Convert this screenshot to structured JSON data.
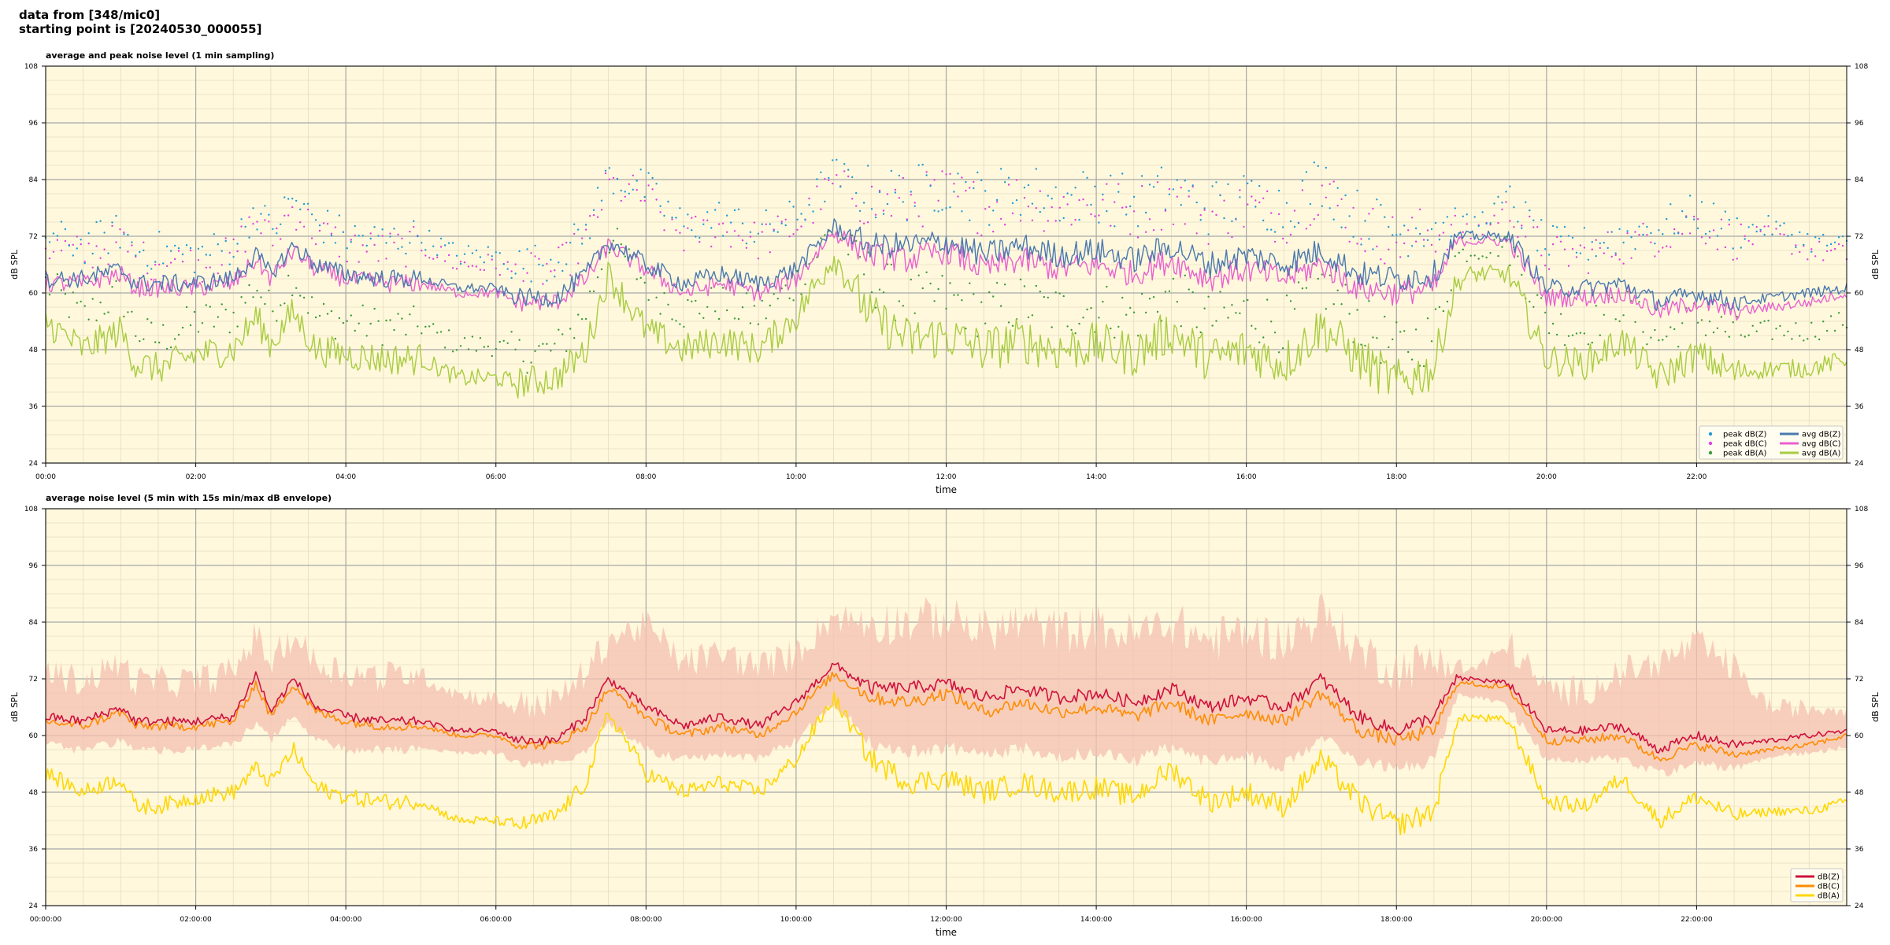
{
  "header": {
    "line1": "data from [348/mic0]",
    "line2": "starting point is [20240530_000055]"
  },
  "colors": {
    "plot_bg": "#fff8dc",
    "peak_z": "#1f9bd7",
    "peak_c": "#e040e0",
    "peak_a": "#3a9a3a",
    "avg_z": "#4a78b0",
    "avg_c": "#e860d0",
    "avg_a": "#a8cc40",
    "db_z": "#d0103c",
    "db_c": "#ff8c00",
    "db_a": "#ffd700",
    "envelope": "#f4c0b0"
  },
  "chart_data": [
    {
      "type": "line",
      "title": "average and peak noise level (1 min sampling)",
      "xlabel": "time",
      "ylabel": "dB SPL",
      "ylim": [
        24,
        108
      ],
      "xlim_hours": [
        0,
        24
      ],
      "yticks": [
        "24",
        "36",
        "48",
        "60",
        "72",
        "84",
        "96",
        "108"
      ],
      "xticks": [
        "00:00",
        "02:00",
        "04:00",
        "06:00",
        "08:00",
        "10:00",
        "12:00",
        "14:00",
        "16:00",
        "18:00",
        "20:00",
        "22:00"
      ],
      "grid": true,
      "legend_position": "bottom-right",
      "x": [
        0,
        0.5,
        1.0,
        1.2,
        1.5,
        2.0,
        2.5,
        2.8,
        3.0,
        3.3,
        3.6,
        4.0,
        4.5,
        5.0,
        5.5,
        6.0,
        6.3,
        6.8,
        7.2,
        7.5,
        8.0,
        8.5,
        9.0,
        9.5,
        10.0,
        10.5,
        11.0,
        11.5,
        12.0,
        12.5,
        13.0,
        13.5,
        14.0,
        14.5,
        15.0,
        15.5,
        16.0,
        16.5,
        17.0,
        17.5,
        18.0,
        18.5,
        18.8,
        19.0,
        19.5,
        20.0,
        20.5,
        21.0,
        21.5,
        22.0,
        22.5,
        23.0,
        23.5,
        24.0
      ],
      "series": [
        {
          "name": "avg dB(Z)",
          "style": "line",
          "values": [
            63,
            63,
            65,
            62,
            62,
            62,
            63,
            68,
            64,
            70,
            66,
            64,
            63,
            63,
            61,
            61,
            59,
            59,
            64,
            71,
            66,
            62,
            64,
            62,
            65,
            74,
            70,
            70,
            71,
            68,
            70,
            68,
            69,
            67,
            70,
            66,
            68,
            66,
            69,
            64,
            63,
            64,
            72,
            72,
            72,
            61,
            61,
            62,
            58,
            60,
            58,
            59,
            60,
            61
          ]
        },
        {
          "name": "avg dB(C)",
          "style": "line",
          "values": [
            62,
            62,
            64,
            61,
            61,
            61,
            62,
            67,
            63,
            69,
            65,
            63,
            62,
            62,
            60,
            60,
            58,
            58,
            63,
            70,
            65,
            60,
            62,
            60,
            63,
            73,
            68,
            67,
            69,
            65,
            67,
            65,
            66,
            64,
            67,
            63,
            65,
            63,
            66,
            61,
            60,
            61,
            71,
            71,
            71,
            59,
            59,
            60,
            56,
            58,
            56,
            57,
            58,
            60
          ]
        },
        {
          "name": "avg dB(A)",
          "style": "line",
          "values": [
            54,
            48,
            52,
            45,
            44,
            47,
            48,
            55,
            49,
            56,
            48,
            47,
            46,
            46,
            42,
            42,
            41,
            42,
            48,
            64,
            52,
            48,
            50,
            48,
            55,
            68,
            55,
            50,
            51,
            48,
            50,
            48,
            49,
            47,
            52,
            46,
            48,
            45,
            53,
            46,
            41,
            44,
            62,
            64,
            64,
            46,
            45,
            50,
            42,
            47,
            43,
            44,
            44,
            46
          ]
        },
        {
          "name": "peak dB(Z)",
          "style": "points",
          "values": [
            72,
            70,
            73,
            69,
            69,
            68,
            70,
            78,
            73,
            80,
            75,
            72,
            71,
            72,
            68,
            68,
            66,
            67,
            73,
            85,
            82,
            74,
            76,
            73,
            76,
            85,
            81,
            81,
            83,
            80,
            82,
            80,
            81,
            79,
            82,
            78,
            80,
            78,
            84,
            76,
            73,
            75,
            75,
            74,
            80,
            70,
            70,
            72,
            74,
            77,
            73,
            74,
            71,
            70
          ]
        },
        {
          "name": "peak dB(C)",
          "style": "points",
          "values": [
            70,
            68,
            71,
            67,
            67,
            66,
            68,
            76,
            71,
            78,
            73,
            70,
            69,
            70,
            66,
            66,
            64,
            65,
            71,
            83,
            80,
            72,
            74,
            71,
            74,
            83,
            79,
            79,
            81,
            78,
            80,
            78,
            79,
            77,
            80,
            76,
            78,
            76,
            82,
            74,
            71,
            73,
            73,
            72,
            78,
            68,
            68,
            70,
            72,
            75,
            71,
            72,
            69,
            68
          ]
        },
        {
          "name": "peak dB(A)",
          "style": "points",
          "values": [
            62,
            55,
            60,
            52,
            50,
            54,
            55,
            62,
            56,
            64,
            55,
            54,
            53,
            53,
            49,
            49,
            47,
            48,
            56,
            72,
            62,
            56,
            58,
            55,
            62,
            74,
            63,
            58,
            59,
            56,
            58,
            56,
            57,
            55,
            60,
            54,
            56,
            53,
            62,
            54,
            48,
            51,
            68,
            69,
            70,
            54,
            52,
            58,
            50,
            55,
            51,
            52,
            52,
            54
          ]
        }
      ]
    },
    {
      "type": "line",
      "title": "average noise level (5 min with 15s min/max dB envelope)",
      "xlabel": "time",
      "ylabel": "dB SPL",
      "ylim": [
        24,
        108
      ],
      "xlim_hours": [
        0,
        24
      ],
      "yticks": [
        "24",
        "36",
        "48",
        "60",
        "72",
        "84",
        "96",
        "108"
      ],
      "xticks": [
        "00:00:00",
        "02:00:00",
        "04:00:00",
        "06:00:00",
        "08:00:00",
        "10:00:00",
        "12:00:00",
        "14:00:00",
        "16:00:00",
        "18:00:00",
        "20:00:00",
        "22:00:00"
      ],
      "grid": true,
      "legend_position": "bottom-right",
      "x": [
        0,
        0.5,
        1.0,
        1.2,
        1.5,
        2.0,
        2.5,
        2.8,
        3.0,
        3.3,
        3.6,
        4.0,
        4.5,
        5.0,
        5.5,
        6.0,
        6.3,
        6.8,
        7.2,
        7.5,
        8.0,
        8.5,
        9.0,
        9.5,
        10.0,
        10.5,
        11.0,
        11.5,
        12.0,
        12.5,
        13.0,
        13.5,
        14.0,
        14.5,
        15.0,
        15.5,
        16.0,
        16.5,
        17.0,
        17.5,
        18.0,
        18.5,
        18.8,
        19.0,
        19.5,
        20.0,
        20.5,
        21.0,
        21.5,
        22.0,
        22.5,
        23.0,
        23.5,
        24.0
      ],
      "series": [
        {
          "name": "dB(Z)",
          "values": [
            64,
            63,
            66,
            63,
            63,
            63,
            64,
            73,
            65,
            72,
            66,
            64,
            63,
            63,
            61,
            61,
            59,
            59,
            64,
            72,
            66,
            62,
            64,
            62,
            67,
            75,
            70,
            70,
            71,
            68,
            70,
            68,
            69,
            67,
            70,
            66,
            68,
            66,
            72,
            64,
            61,
            64,
            72,
            72,
            71,
            61,
            61,
            62,
            57,
            60,
            58,
            59,
            60,
            61
          ]
        },
        {
          "name": "dB(C)",
          "values": [
            63,
            62,
            65,
            62,
            62,
            62,
            63,
            71,
            64,
            71,
            65,
            63,
            62,
            62,
            60,
            60,
            58,
            58,
            62,
            70,
            64,
            60,
            62,
            60,
            65,
            73,
            68,
            67,
            69,
            65,
            67,
            65,
            66,
            64,
            67,
            63,
            65,
            63,
            69,
            61,
            59,
            61,
            71,
            71,
            70,
            59,
            59,
            60,
            55,
            58,
            56,
            57,
            58,
            60
          ]
        },
        {
          "name": "dB(A)",
          "values": [
            52,
            48,
            51,
            45,
            45,
            47,
            48,
            53,
            50,
            57,
            49,
            47,
            46,
            46,
            42,
            42,
            41,
            43,
            50,
            65,
            52,
            48,
            50,
            48,
            55,
            68,
            55,
            50,
            51,
            48,
            50,
            48,
            49,
            47,
            53,
            46,
            48,
            45,
            55,
            46,
            41,
            44,
            63,
            64,
            63,
            46,
            45,
            51,
            42,
            47,
            43,
            44,
            44,
            46
          ]
        }
      ],
      "envelope": {
        "upper": [
          72,
          70,
          74,
          70,
          70,
          70,
          72,
          80,
          74,
          80,
          74,
          72,
          71,
          72,
          68,
          67,
          65,
          66,
          72,
          79,
          82,
          74,
          76,
          73,
          76,
          84,
          82,
          82,
          83,
          80,
          82,
          80,
          81,
          79,
          82,
          78,
          80,
          78,
          84,
          76,
          72,
          74,
          74,
          73,
          78,
          68,
          68,
          72,
          74,
          78,
          73,
          65,
          65,
          65
        ],
        "lower": [
          59,
          58,
          60,
          58,
          58,
          58,
          59,
          64,
          60,
          65,
          60,
          58,
          58,
          58,
          57,
          57,
          55,
          55,
          58,
          64,
          58,
          56,
          57,
          56,
          60,
          68,
          60,
          58,
          59,
          57,
          59,
          57,
          58,
          56,
          59,
          56,
          57,
          55,
          61,
          56,
          55,
          56,
          69,
          69,
          67,
          56,
          56,
          56,
          53,
          55,
          54,
          56,
          57,
          58
        ]
      }
    }
  ]
}
